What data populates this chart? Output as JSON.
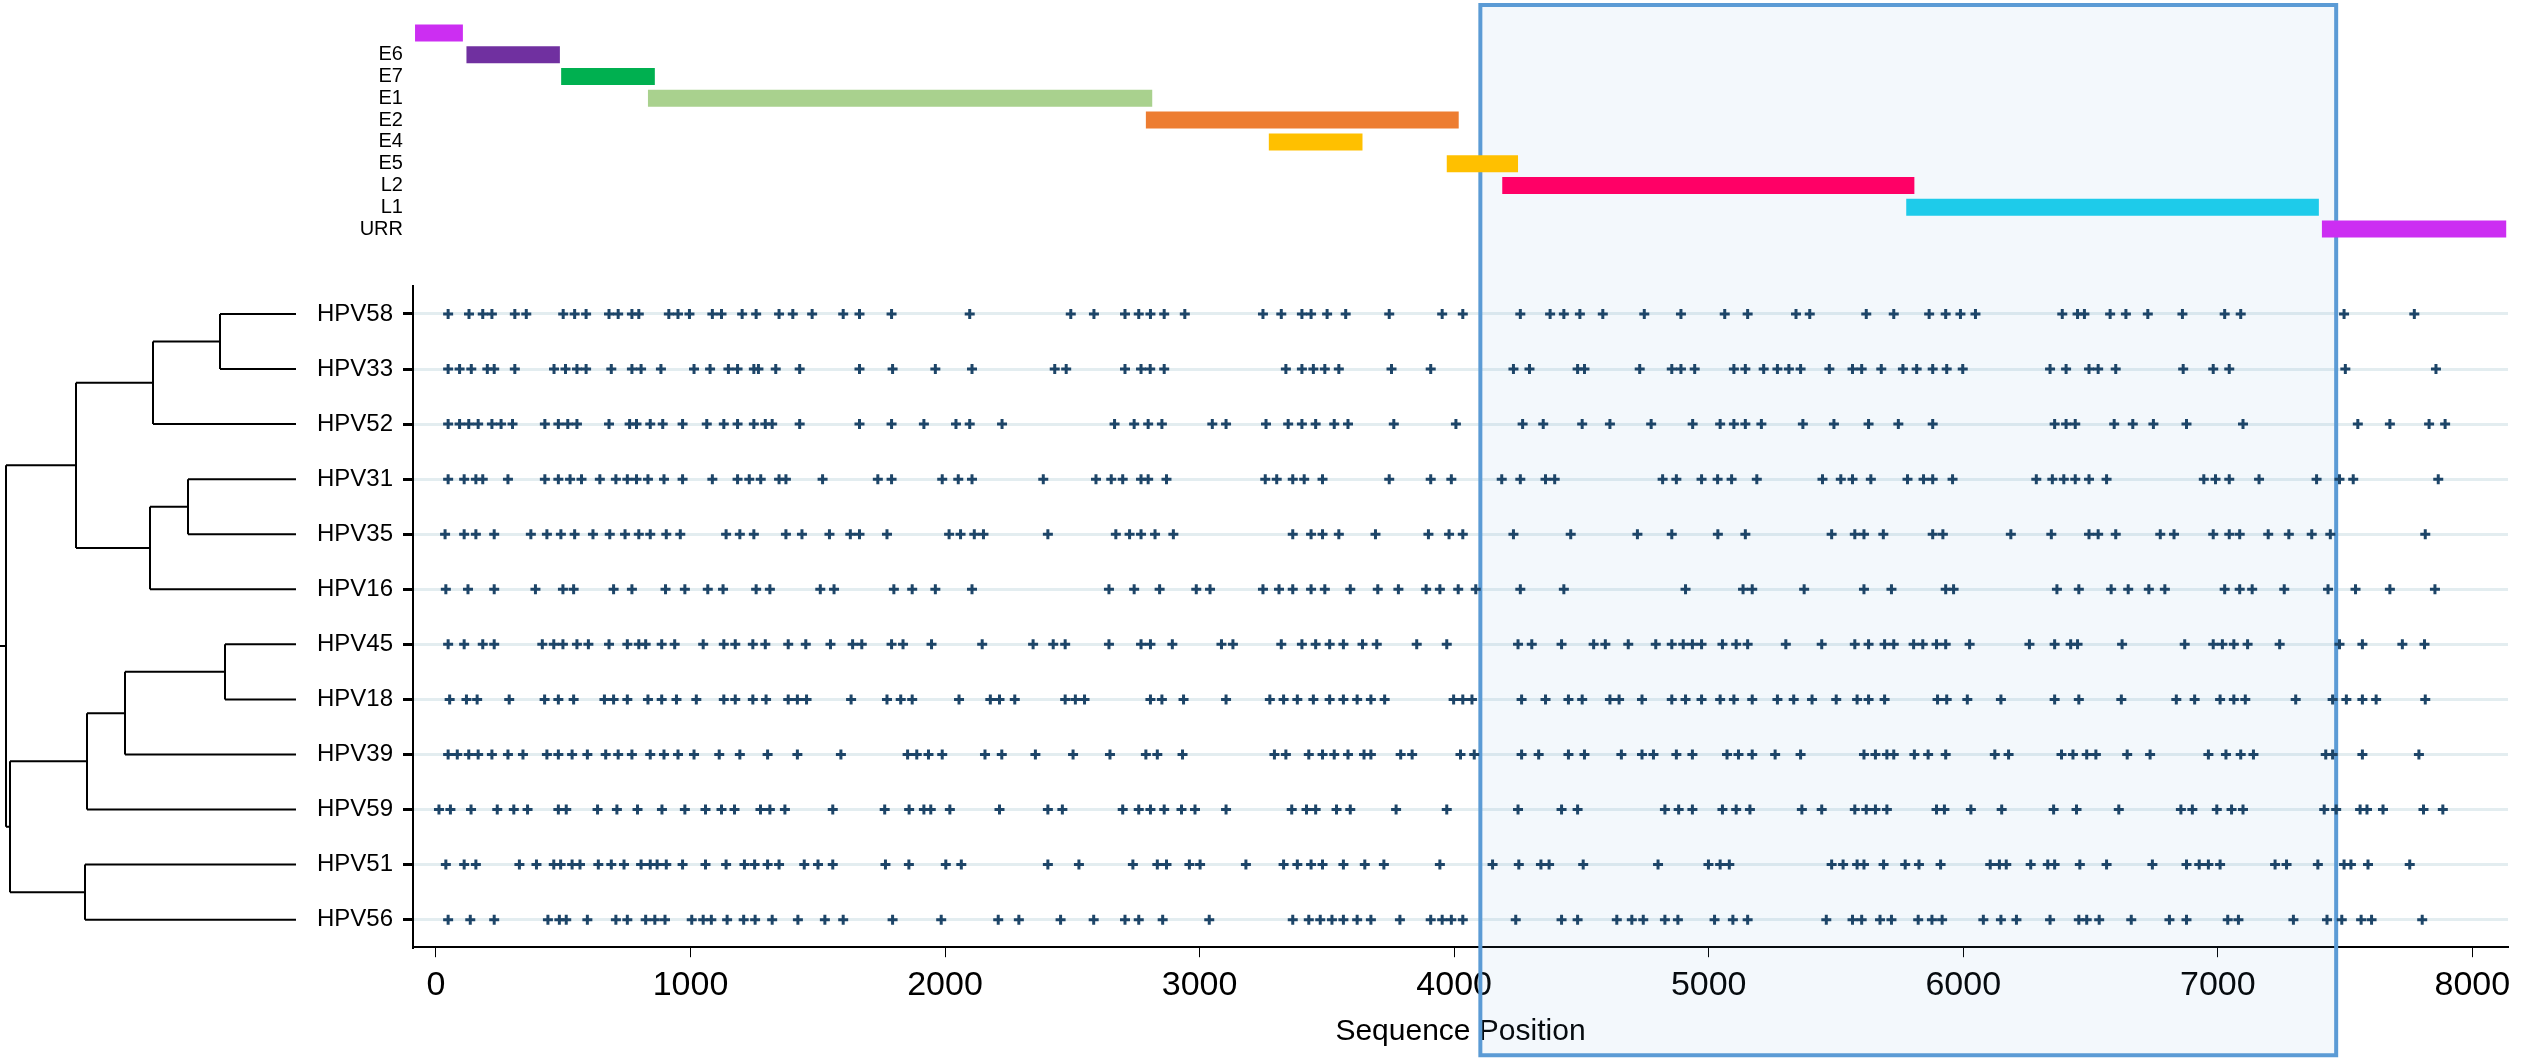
{
  "chart_data": [
    {
      "type": "bar",
      "orientation": "horizontal",
      "categories": [
        null,
        "E6",
        "E7",
        "E1",
        "E2",
        "E4",
        "E5",
        "L2",
        "L1",
        "URR"
      ],
      "values": [
        188,
        367,
        368,
        1981,
        1229,
        368,
        280,
        1619,
        1621,
        724
      ],
      "base": [
        -82,
        120,
        492,
        833,
        2789,
        3272,
        3971,
        4189,
        5776,
        7409
      ],
      "colors": [
        "#cc2ef2",
        "#7030a0",
        "#00b050",
        "#a9d18e",
        "#ed7d31",
        "#ffc000",
        "#ffc000",
        "#ff0066",
        "#1ecbea",
        "#cc2ef2"
      ],
      "xlim": [
        -90,
        8140
      ],
      "tick_labels": "y",
      "bands": [
        {
          "axis": "x",
          "from": 4103,
          "to": 7465,
          "color": "#5b9bd5"
        }
      ]
    },
    {
      "type": "scatter",
      "orientation": "horizontal",
      "categories": [
        "HPV58",
        "HPV33",
        "HPV52",
        "HPV31",
        "HPV35",
        "HPV16",
        "HPV45",
        "HPV18",
        "HPV39",
        "HPV59",
        "HPV51",
        "HPV56"
      ],
      "series": [
        {
          "color": "#1d4568",
          "x": [
            "HPV58",
            "HPV58",
            "HPV58",
            "HPV58",
            "HPV58",
            "HPV58",
            "HPV58",
            "HPV58",
            "HPV58",
            "HPV58",
            "HPV58",
            "HPV58",
            "HPV58",
            "HPV58",
            "HPV58",
            "HPV58",
            "HPV58",
            "HPV58",
            "HPV58",
            "HPV58",
            "HPV58",
            "HPV58",
            "HPV58",
            "HPV58",
            "HPV58",
            "HPV58",
            "HPV58",
            "HPV58",
            "HPV58",
            "HPV58",
            "HPV58",
            "HPV58",
            "HPV58",
            "HPV58",
            "HPV58",
            "HPV58",
            "HPV58",
            "HPV58",
            "HPV58",
            "HPV58",
            "HPV58",
            "HPV58",
            "HPV58",
            "HPV58",
            "HPV58",
            "HPV58",
            "HPV58",
            "HPV58",
            "HPV58",
            "HPV58",
            "HPV58",
            "HPV58",
            "HPV58",
            "HPV58",
            "HPV58",
            "HPV58",
            "HPV58",
            "HPV58",
            "HPV58",
            "HPV58",
            "HPV58",
            "HPV58",
            "HPV58",
            "HPV58",
            "HPV58",
            "HPV58",
            "HPV58",
            "HPV58",
            "HPV58",
            "HPV58",
            "HPV58"
          ],
          "values": [
            48,
            130,
            184,
            220,
            310,
            355,
            500,
            545,
            590,
            680,
            716,
            770,
            797,
            915,
            951,
            996,
            1086,
            1122,
            1203,
            1258,
            1348,
            1402,
            1478,
            1600,
            1664,
            1790,
            2097,
            2494,
            2585,
            2707,
            2761,
            2807,
            2861,
            2942,
            3249,
            3321,
            3402,
            3438,
            3501,
            3574,
            3745,
            3953,
            4034,
            4260,
            4377,
            4431,
            4494,
            4584,
            4747,
            4891,
            5063,
            5153,
            5343,
            5397,
            5619,
            5727,
            5866,
            5931,
            5989,
            6048,
            6389,
            6449,
            6476,
            6577,
            6639,
            6725,
            6861,
            7027,
            7090,
            7496,
            7772
          ]
        },
        {
          "color": "#1d4568",
          "x": [
            "HPV33",
            "HPV33",
            "HPV33",
            "HPV33",
            "HPV33",
            "HPV33",
            "HPV33",
            "HPV33",
            "HPV33",
            "HPV33",
            "HPV33",
            "HPV33",
            "HPV33",
            "HPV33",
            "HPV33",
            "HPV33",
            "HPV33",
            "HPV33",
            "HPV33",
            "HPV33",
            "HPV33",
            "HPV33",
            "HPV33",
            "HPV33",
            "HPV33",
            "HPV33",
            "HPV33",
            "HPV33",
            "HPV33",
            "HPV33",
            "HPV33",
            "HPV33",
            "HPV33",
            "HPV33",
            "HPV33",
            "HPV33",
            "HPV33",
            "HPV33",
            "HPV33",
            "HPV33",
            "HPV33",
            "HPV33",
            "HPV33",
            "HPV33",
            "HPV33",
            "HPV33",
            "HPV33",
            "HPV33",
            "HPV33",
            "HPV33",
            "HPV33",
            "HPV33",
            "HPV33",
            "HPV33",
            "HPV33",
            "HPV33",
            "HPV33",
            "HPV33",
            "HPV33",
            "HPV33",
            "HPV33",
            "HPV33",
            "HPV33",
            "HPV33",
            "HPV33",
            "HPV33",
            "HPV33",
            "HPV33",
            "HPV33",
            "HPV33",
            "HPV33",
            "HPV33"
          ],
          "values": [
            48,
            93,
            139,
            202,
            229,
            310,
            464,
            509,
            554,
            590,
            689,
            770,
            806,
            884,
            1014,
            1077,
            1149,
            1185,
            1249,
            1267,
            1335,
            1429,
            1664,
            1794,
            1962,
            2106,
            2431,
            2476,
            2707,
            2770,
            2806,
            2861,
            3339,
            3402,
            3447,
            3492,
            3547,
            3754,
            3908,
            4233,
            4296,
            4485,
            4512,
            4729,
            4855,
            4891,
            4945,
            5099,
            5144,
            5216,
            5270,
            5315,
            5361,
            5474,
            5565,
            5601,
            5678,
            5763,
            5817,
            5880,
            5935,
            5998,
            6341,
            6404,
            6494,
            6530,
            6599,
            6864,
            6982,
            7045,
            7501,
            7857
          ]
        },
        {
          "color": "#1d4568",
          "x": [
            "HPV52",
            "HPV52",
            "HPV52",
            "HPV52",
            "HPV52",
            "HPV52",
            "HPV52",
            "HPV52",
            "HPV52",
            "HPV52",
            "HPV52",
            "HPV52",
            "HPV52",
            "HPV52",
            "HPV52",
            "HPV52",
            "HPV52",
            "HPV52",
            "HPV52",
            "HPV52",
            "HPV52",
            "HPV52",
            "HPV52",
            "HPV52",
            "HPV52",
            "HPV52",
            "HPV52",
            "HPV52",
            "HPV52",
            "HPV52",
            "HPV52",
            "HPV52",
            "HPV52",
            "HPV52",
            "HPV52",
            "HPV52",
            "HPV52",
            "HPV52",
            "HPV52",
            "HPV52",
            "HPV52",
            "HPV52",
            "HPV52",
            "HPV52",
            "HPV52",
            "HPV52",
            "HPV52",
            "HPV52",
            "HPV52",
            "HPV52",
            "HPV52",
            "HPV52",
            "HPV52",
            "HPV52",
            "HPV52",
            "HPV52",
            "HPV52",
            "HPV52",
            "HPV52",
            "HPV52",
            "HPV52",
            "HPV52",
            "HPV52",
            "HPV52",
            "HPV52",
            "HPV52",
            "HPV52",
            "HPV52",
            "HPV52",
            "HPV52",
            "HPV52"
          ],
          "values": [
            48,
            93,
            129,
            166,
            220,
            256,
            301,
            428,
            481,
            518,
            554,
            680,
            761,
            788,
            842,
            891,
            969,
            1064,
            1131,
            1185,
            1249,
            1294,
            1321,
            1429,
            1664,
            1790,
            1917,
            2043,
            2097,
            2224,
            2666,
            2743,
            2798,
            2852,
            3050,
            3104,
            3261,
            3348,
            3402,
            3456,
            3529,
            3583,
            3763,
            4007,
            4269,
            4350,
            4503,
            4612,
            4774,
            4937,
            5045,
            5099,
            5144,
            5207,
            5370,
            5492,
            5628,
            5745,
            5880,
            6359,
            6404,
            6440,
            6593,
            6666,
            6747,
            6877,
            7099,
            7550,
            7676,
            7830,
            7893
          ]
        },
        {
          "color": "#1d4568",
          "x": [
            "HPV31",
            "HPV31",
            "HPV31",
            "HPV31",
            "HPV31",
            "HPV31",
            "HPV31",
            "HPV31",
            "HPV31",
            "HPV31",
            "HPV31",
            "HPV31",
            "HPV31",
            "HPV31",
            "HPV31",
            "HPV31",
            "HPV31",
            "HPV31",
            "HPV31",
            "HPV31",
            "HPV31",
            "HPV31",
            "HPV31",
            "HPV31",
            "HPV31",
            "HPV31",
            "HPV31",
            "HPV31",
            "HPV31",
            "HPV31",
            "HPV31",
            "HPV31",
            "HPV31",
            "HPV31",
            "HPV31",
            "HPV31",
            "HPV31",
            "HPV31",
            "HPV31",
            "HPV31",
            "HPV31",
            "HPV31",
            "HPV31",
            "HPV31",
            "HPV31",
            "HPV31",
            "HPV31",
            "HPV31",
            "HPV31",
            "HPV31",
            "HPV31",
            "HPV31",
            "HPV31",
            "HPV31",
            "HPV31",
            "HPV31",
            "HPV31",
            "HPV31",
            "HPV31",
            "HPV31",
            "HPV31",
            "HPV31",
            "HPV31",
            "HPV31",
            "HPV31",
            "HPV31",
            "HPV31",
            "HPV31",
            "HPV31",
            "HPV31",
            "HPV31",
            "HPV31",
            "HPV31",
            "HPV31",
            "HPV31"
          ],
          "values": [
            48,
            111,
            157,
            184,
            283,
            428,
            481,
            527,
            572,
            644,
            707,
            752,
            788,
            833,
            896,
            969,
            1086,
            1185,
            1231,
            1276,
            1348,
            1375,
            1519,
            1736,
            1790,
            1989,
            2052,
            2106,
            2386,
            2593,
            2653,
            2698,
            2770,
            2798,
            2870,
            3258,
            3303,
            3366,
            3411,
            3483,
            3745,
            3908,
            3989,
            4187,
            4260,
            4359,
            4395,
            4819,
            4873,
            4972,
            5035,
            5090,
            5189,
            5447,
            5519,
            5565,
            5637,
            5781,
            5844,
            5880,
            5958,
            6287,
            6350,
            6395,
            6440,
            6494,
            6563,
            6945,
            6991,
            7045,
            7162,
            7388,
            7478,
            7532,
            7866
          ]
        },
        {
          "color": "#1d4568",
          "x": [
            "HPV35",
            "HPV35",
            "HPV35",
            "HPV35",
            "HPV35",
            "HPV35",
            "HPV35",
            "HPV35",
            "HPV35",
            "HPV35",
            "HPV35",
            "HPV35",
            "HPV35",
            "HPV35",
            "HPV35",
            "HPV35",
            "HPV35",
            "HPV35",
            "HPV35",
            "HPV35",
            "HPV35",
            "HPV35",
            "HPV35",
            "HPV35",
            "HPV35",
            "HPV35",
            "HPV35",
            "HPV35",
            "HPV35",
            "HPV35",
            "HPV35",
            "HPV35",
            "HPV35",
            "HPV35",
            "HPV35",
            "HPV35",
            "HPV35",
            "HPV35",
            "HPV35",
            "HPV35",
            "HPV35",
            "HPV35",
            "HPV35",
            "HPV35",
            "HPV35",
            "HPV35",
            "HPV35",
            "HPV35",
            "HPV35",
            "HPV35",
            "HPV35",
            "HPV35",
            "HPV35",
            "HPV35",
            "HPV35",
            "HPV35",
            "HPV35",
            "HPV35",
            "HPV35",
            "HPV35",
            "HPV35",
            "HPV35",
            "HPV35",
            "HPV35",
            "HPV35",
            "HPV35",
            "HPV35",
            "HPV35",
            "HPV35"
          ],
          "values": [
            36,
            111,
            157,
            229,
            373,
            436,
            491,
            545,
            617,
            683,
            743,
            797,
            842,
            905,
            960,
            1140,
            1194,
            1249,
            1375,
            1438,
            1546,
            1628,
            1664,
            1772,
            2016,
            2061,
            2115,
            2151,
            2404,
            2671,
            2725,
            2770,
            2825,
            2897,
            3366,
            3438,
            3483,
            3547,
            3691,
            3899,
            3980,
            4034,
            4233,
            4458,
            4720,
            4855,
            5036,
            5144,
            5483,
            5574,
            5610,
            5686,
            5880,
            5920,
            6187,
            6346,
            6494,
            6530,
            6599,
            6774,
            6828,
            6982,
            7045,
            7086,
            7198,
            7279,
            7369,
            7442,
            7815
          ]
        },
        {
          "color": "#1d4568",
          "x": [
            "HPV16",
            "HPV16",
            "HPV16",
            "HPV16",
            "HPV16",
            "HPV16",
            "HPV16",
            "HPV16",
            "HPV16",
            "HPV16",
            "HPV16",
            "HPV16",
            "HPV16",
            "HPV16",
            "HPV16",
            "HPV16",
            "HPV16",
            "HPV16",
            "HPV16",
            "HPV16",
            "HPV16",
            "HPV16",
            "HPV16",
            "HPV16",
            "HPV16",
            "HPV16",
            "HPV16",
            "HPV16",
            "HPV16",
            "HPV16",
            "HPV16",
            "HPV16",
            "HPV16",
            "HPV16",
            "HPV16",
            "HPV16",
            "HPV16",
            "HPV16",
            "HPV16",
            "HPV16",
            "HPV16",
            "HPV16",
            "HPV16",
            "HPV16",
            "HPV16",
            "HPV16",
            "HPV16",
            "HPV16",
            "HPV16",
            "HPV16",
            "HPV16",
            "HPV16",
            "HPV16",
            "HPV16",
            "HPV16",
            "HPV16",
            "HPV16",
            "HPV16",
            "HPV16",
            "HPV16",
            "HPV16"
          ],
          "values": [
            39,
            126,
            229,
            391,
            499,
            541,
            698,
            770,
            902,
            978,
            1068,
            1128,
            1258,
            1312,
            1510,
            1564,
            1799,
            1871,
            1962,
            2106,
            2644,
            2743,
            2843,
            2987,
            3041,
            3249,
            3312,
            3366,
            3438,
            3492,
            3592,
            3700,
            3781,
            3890,
            3944,
            4016,
            4085,
            4260,
            4431,
            4909,
            5135,
            5171,
            5375,
            5610,
            5718,
            5931,
            5962,
            6368,
            6454,
            6581,
            6648,
            6729,
            6792,
            7027,
            7086,
            7135,
            7261,
            7433,
            7541,
            7676,
            7853
          ]
        },
        {
          "color": "#1d4568",
          "x": [
            "HPV45",
            "HPV45",
            "HPV45",
            "HPV45",
            "HPV45",
            "HPV45",
            "HPV45",
            "HPV45",
            "HPV45",
            "HPV45",
            "HPV45",
            "HPV45",
            "HPV45",
            "HPV45",
            "HPV45",
            "HPV45",
            "HPV45",
            "HPV45",
            "HPV45",
            "HPV45",
            "HPV45",
            "HPV45",
            "HPV45",
            "HPV45",
            "HPV45",
            "HPV45",
            "HPV45",
            "HPV45",
            "HPV45",
            "HPV45",
            "HPV45",
            "HPV45",
            "HPV45",
            "HPV45",
            "HPV45",
            "HPV45",
            "HPV45",
            "HPV45",
            "HPV45",
            "HPV45",
            "HPV45",
            "HPV45",
            "HPV45",
            "HPV45",
            "HPV45",
            "HPV45",
            "HPV45",
            "HPV45",
            "HPV45",
            "HPV45",
            "HPV45",
            "HPV45",
            "HPV45",
            "HPV45",
            "HPV45",
            "HPV45",
            "HPV45",
            "HPV45",
            "HPV45",
            "HPV45",
            "HPV45",
            "HPV45",
            "HPV45",
            "HPV45",
            "HPV45",
            "HPV45",
            "HPV45",
            "HPV45",
            "HPV45",
            "HPV45",
            "HPV45",
            "HPV45",
            "HPV45",
            "HPV45",
            "HPV45",
            "HPV45",
            "HPV45",
            "HPV45",
            "HPV45",
            "HPV45",
            "HPV45",
            "HPV45",
            "HPV45",
            "HPV45",
            "HPV45",
            "HPV45",
            "HPV45"
          ],
          "values": [
            48,
            111,
            184,
            229,
            418,
            463,
            499,
            554,
            599,
            680,
            752,
            797,
            824,
            887,
            938,
            1050,
            1131,
            1176,
            1245,
            1294,
            1384,
            1453,
            1550,
            1637,
            1673,
            1790,
            1835,
            1947,
            2146,
            2346,
            2425,
            2472,
            2644,
            2770,
            2807,
            2893,
            3086,
            3131,
            3321,
            3402,
            3456,
            3511,
            3565,
            3640,
            3696,
            3853,
            3971,
            4251,
            4305,
            4422,
            4548,
            4594,
            4684,
            4792,
            4855,
            4900,
            4936,
            4972,
            5054,
            5108,
            5153,
            5303,
            5444,
            5574,
            5628,
            5691,
            5727,
            5805,
            5841,
            5895,
            5931,
            6025,
            6260,
            6359,
            6422,
            6449,
            6624,
            6870,
            6982,
            7018,
            7063,
            7117,
            7243,
            7478,
            7568,
            7725,
            7812
          ]
        },
        {
          "color": "#1d4568",
          "x": [
            "HPV18",
            "HPV18",
            "HPV18",
            "HPV18",
            "HPV18",
            "HPV18",
            "HPV18",
            "HPV18",
            "HPV18",
            "HPV18",
            "HPV18",
            "HPV18",
            "HPV18",
            "HPV18",
            "HPV18",
            "HPV18",
            "HPV18",
            "HPV18",
            "HPV18",
            "HPV18",
            "HPV18",
            "HPV18",
            "HPV18",
            "HPV18",
            "HPV18",
            "HPV18",
            "HPV18",
            "HPV18",
            "HPV18",
            "HPV18",
            "HPV18",
            "HPV18",
            "HPV18",
            "HPV18",
            "HPV18",
            "HPV18",
            "HPV18",
            "HPV18",
            "HPV18",
            "HPV18",
            "HPV18",
            "HPV18",
            "HPV18",
            "HPV18",
            "HPV18",
            "HPV18",
            "HPV18",
            "HPV18",
            "HPV18",
            "HPV18",
            "HPV18",
            "HPV18",
            "HPV18",
            "HPV18",
            "HPV18",
            "HPV18",
            "HPV18",
            "HPV18",
            "HPV18",
            "HPV18",
            "HPV18",
            "HPV18",
            "HPV18",
            "HPV18",
            "HPV18",
            "HPV18",
            "HPV18",
            "HPV18",
            "HPV18",
            "HPV18",
            "HPV18",
            "HPV18",
            "HPV18",
            "HPV18",
            "HPV18",
            "HPV18",
            "HPV18",
            "HPV18",
            "HPV18",
            "HPV18",
            "HPV18",
            "HPV18",
            "HPV18",
            "HPV18",
            "HPV18",
            "HPV18"
          ],
          "values": [
            54,
            120,
            162,
            288,
            427,
            481,
            541,
            662,
            698,
            752,
            833,
            887,
            945,
            1023,
            1131,
            1176,
            1245,
            1297,
            1384,
            1420,
            1456,
            1631,
            1772,
            1826,
            1871,
            2055,
            2178,
            2214,
            2274,
            2472,
            2512,
            2548,
            2807,
            2852,
            2937,
            3104,
            3276,
            3330,
            3384,
            3447,
            3511,
            3565,
            3619,
            3673,
            3727,
            3998,
            4034,
            4070,
            4265,
            4359,
            4449,
            4503,
            4612,
            4648,
            4738,
            4855,
            4909,
            4972,
            5045,
            5099,
            5171,
            5270,
            5334,
            5406,
            5501,
            5583,
            5628,
            5691,
            5899,
            5935,
            6016,
            6148,
            6359,
            6454,
            6621,
            6837,
            6909,
            7009,
            7063,
            7108,
            7306,
            7451,
            7505,
            7568,
            7622,
            7815
          ]
        },
        {
          "color": "#1d4568",
          "x": [
            "HPV39",
            "HPV39",
            "HPV39",
            "HPV39",
            "HPV39",
            "HPV39",
            "HPV39",
            "HPV39",
            "HPV39",
            "HPV39",
            "HPV39",
            "HPV39",
            "HPV39",
            "HPV39",
            "HPV39",
            "HPV39",
            "HPV39",
            "HPV39",
            "HPV39",
            "HPV39",
            "HPV39",
            "HPV39",
            "HPV39",
            "HPV39",
            "HPV39",
            "HPV39",
            "HPV39",
            "HPV39",
            "HPV39",
            "HPV39",
            "HPV39",
            "HPV39",
            "HPV39",
            "HPV39",
            "HPV39",
            "HPV39",
            "HPV39",
            "HPV39",
            "HPV39",
            "HPV39",
            "HPV39",
            "HPV39",
            "HPV39",
            "HPV39",
            "HPV39",
            "HPV39",
            "HPV39",
            "HPV39",
            "HPV39",
            "HPV39",
            "HPV39",
            "HPV39",
            "HPV39",
            "HPV39",
            "HPV39",
            "HPV39",
            "HPV39",
            "HPV39",
            "HPV39",
            "HPV39",
            "HPV39",
            "HPV39",
            "HPV39",
            "HPV39",
            "HPV39",
            "HPV39",
            "HPV39",
            "HPV39",
            "HPV39",
            "HPV39",
            "HPV39",
            "HPV39",
            "HPV39",
            "HPV39",
            "HPV39",
            "HPV39",
            "HPV39",
            "HPV39",
            "HPV39",
            "HPV39",
            "HPV39",
            "HPV39",
            "HPV39",
            "HPV39"
          ],
          "values": [
            48,
            84,
            129,
            166,
            220,
            283,
            342,
            436,
            481,
            535,
            595,
            667,
            716,
            770,
            842,
            896,
            951,
            1014,
            1113,
            1194,
            1303,
            1420,
            1591,
            1853,
            1889,
            1935,
            1989,
            2157,
            2223,
            2355,
            2503,
            2648,
            2789,
            2834,
            2933,
            3294,
            3339,
            3429,
            3483,
            3529,
            3583,
            3646,
            3673,
            3790,
            3835,
            4025,
            4079,
            4265,
            4332,
            4449,
            4512,
            4657,
            4738,
            4783,
            4873,
            4936,
            5072,
            5117,
            5171,
            5261,
            5361,
            5610,
            5655,
            5700,
            5727,
            5808,
            5862,
            5931,
            6124,
            6178,
            6386,
            6431,
            6485,
            6521,
            6644,
            6734,
            6963,
            7032,
            7090,
            7140,
            7424,
            7451,
            7568,
            7790
          ]
        },
        {
          "color": "#1d4568",
          "x": [
            "HPV59",
            "HPV59",
            "HPV59",
            "HPV59",
            "HPV59",
            "HPV59",
            "HPV59",
            "HPV59",
            "HPV59",
            "HPV59",
            "HPV59",
            "HPV59",
            "HPV59",
            "HPV59",
            "HPV59",
            "HPV59",
            "HPV59",
            "HPV59",
            "HPV59",
            "HPV59",
            "HPV59",
            "HPV59",
            "HPV59",
            "HPV59",
            "HPV59",
            "HPV59",
            "HPV59",
            "HPV59",
            "HPV59",
            "HPV59",
            "HPV59",
            "HPV59",
            "HPV59",
            "HPV59",
            "HPV59",
            "HPV59",
            "HPV59",
            "HPV59",
            "HPV59",
            "HPV59",
            "HPV59",
            "HPV59",
            "HPV59",
            "HPV59",
            "HPV59",
            "HPV59",
            "HPV59",
            "HPV59",
            "HPV59",
            "HPV59",
            "HPV59",
            "HPV59",
            "HPV59",
            "HPV59",
            "HPV59",
            "HPV59",
            "HPV59",
            "HPV59",
            "HPV59",
            "HPV59",
            "HPV59",
            "HPV59",
            "HPV59",
            "HPV59",
            "HPV59",
            "HPV59",
            "HPV59",
            "HPV59",
            "HPV59",
            "HPV59",
            "HPV59",
            "HPV59",
            "HPV59",
            "HPV59",
            "HPV59",
            "HPV59"
          ],
          "values": [
            12,
            57,
            138,
            241,
            306,
            360,
            481,
            512,
            635,
            711,
            792,
            888,
            978,
            1059,
            1122,
            1173,
            1275,
            1312,
            1371,
            1559,
            1763,
            1859,
            1917,
            1944,
            2019,
            2214,
            2404,
            2461,
            2698,
            2761,
            2807,
            2861,
            2929,
            2982,
            3104,
            3362,
            3420,
            3456,
            3538,
            3592,
            3772,
            3971,
            4251,
            4422,
            4485,
            4828,
            4882,
            4936,
            5054,
            5108,
            5162,
            5366,
            5444,
            5574,
            5619,
            5655,
            5700,
            5895,
            5926,
            6030,
            6151,
            6355,
            6445,
            6611,
            6855,
            6900,
            6996,
            7054,
            7099,
            7418,
            7465,
            7559,
            7586,
            7649,
            7808,
            7884
          ]
        },
        {
          "color": "#1d4568",
          "x": [
            "HPV51",
            "HPV51",
            "HPV51",
            "HPV51",
            "HPV51",
            "HPV51",
            "HPV51",
            "HPV51",
            "HPV51",
            "HPV51",
            "HPV51",
            "HPV51",
            "HPV51",
            "HPV51",
            "HPV51",
            "HPV51",
            "HPV51",
            "HPV51",
            "HPV51",
            "HPV51",
            "HPV51",
            "HPV51",
            "HPV51",
            "HPV51",
            "HPV51",
            "HPV51",
            "HPV51",
            "HPV51",
            "HPV51",
            "HPV51",
            "HPV51",
            "HPV51",
            "HPV51",
            "HPV51",
            "HPV51",
            "HPV51",
            "HPV51",
            "HPV51",
            "HPV51",
            "HPV51",
            "HPV51",
            "HPV51",
            "HPV51",
            "HPV51",
            "HPV51",
            "HPV51",
            "HPV51",
            "HPV51",
            "HPV51",
            "HPV51",
            "HPV51",
            "HPV51",
            "HPV51",
            "HPV51",
            "HPV51",
            "HPV51",
            "HPV51",
            "HPV51",
            "HPV51",
            "HPV51",
            "HPV51",
            "HPV51",
            "HPV51",
            "HPV51",
            "HPV51",
            "HPV51",
            "HPV51",
            "HPV51",
            "HPV51",
            "HPV51",
            "HPV51",
            "HPV51",
            "HPV51",
            "HPV51",
            "HPV51",
            "HPV51",
            "HPV51",
            "HPV51",
            "HPV51",
            "HPV51",
            "HPV51",
            "HPV51",
            "HPV51"
          ],
          "values": [
            39,
            111,
            157,
            328,
            395,
            463,
            490,
            535,
            566,
            638,
            689,
            739,
            806,
            842,
            869,
            905,
            969,
            1059,
            1140,
            1212,
            1252,
            1303,
            1348,
            1447,
            1501,
            1559,
            1766,
            1858,
            2003,
            2064,
            2404,
            2526,
            2738,
            2834,
            2870,
            2960,
            3002,
            3182,
            3330,
            3384,
            3438,
            3483,
            3565,
            3649,
            3724,
            3944,
            4151,
            4254,
            4341,
            4373,
            4507,
            4801,
            4999,
            5045,
            5081,
            5483,
            5528,
            5583,
            5610,
            5687,
            5772,
            5826,
            5911,
            6106,
            6142,
            6169,
            6265,
            6332,
            6359,
            6458,
            6563,
            6743,
            6877,
            6927,
            6963,
            7009,
            7225,
            7270,
            7393,
            7496,
            7523,
            7590,
            7754
          ]
        },
        {
          "color": "#1d4568",
          "x": [
            "HPV56",
            "HPV56",
            "HPV56",
            "HPV56",
            "HPV56",
            "HPV56",
            "HPV56",
            "HPV56",
            "HPV56",
            "HPV56",
            "HPV56",
            "HPV56",
            "HPV56",
            "HPV56",
            "HPV56",
            "HPV56",
            "HPV56",
            "HPV56",
            "HPV56",
            "HPV56",
            "HPV56",
            "HPV56",
            "HPV56",
            "HPV56",
            "HPV56",
            "HPV56",
            "HPV56",
            "HPV56",
            "HPV56",
            "HPV56",
            "HPV56",
            "HPV56",
            "HPV56",
            "HPV56",
            "HPV56",
            "HPV56",
            "HPV56",
            "HPV56",
            "HPV56",
            "HPV56",
            "HPV56",
            "HPV56",
            "HPV56",
            "HPV56",
            "HPV56",
            "HPV56",
            "HPV56",
            "HPV56",
            "HPV56",
            "HPV56",
            "HPV56",
            "HPV56",
            "HPV56",
            "HPV56",
            "HPV56",
            "HPV56",
            "HPV56",
            "HPV56",
            "HPV56",
            "HPV56",
            "HPV56",
            "HPV56",
            "HPV56",
            "HPV56",
            "HPV56",
            "HPV56",
            "HPV56",
            "HPV56",
            "HPV56",
            "HPV56",
            "HPV56",
            "HPV56",
            "HPV56",
            "HPV56",
            "HPV56",
            "HPV56",
            "HPV56",
            "HPV56",
            "HPV56",
            "HPV56",
            "HPV56"
          ],
          "values": [
            48,
            135,
            229,
            440,
            485,
            512,
            595,
            707,
            752,
            824,
            860,
            900,
            1005,
            1050,
            1082,
            1144,
            1209,
            1254,
            1321,
            1422,
            1528,
            1600,
            1794,
            1985,
            2209,
            2290,
            2454,
            2584,
            2707,
            2761,
            2855,
            3038,
            3366,
            3429,
            3474,
            3520,
            3565,
            3619,
            3673,
            3787,
            3908,
            3953,
            3989,
            4034,
            4242,
            4422,
            4485,
            4639,
            4698,
            4743,
            4828,
            4879,
            5023,
            5095,
            5153,
            5462,
            5565,
            5601,
            5673,
            5718,
            5823,
            5877,
            5917,
            6079,
            6148,
            6209,
            6341,
            6454,
            6485,
            6534,
            6660,
            6810,
            6877,
            7039,
            7081,
            7297,
            7429,
            7487,
            7563,
            7604,
            7803
          ]
        }
      ],
      "xlim": [
        -90,
        8140
      ],
      "xticks": [
        0,
        1000,
        2000,
        3000,
        4000,
        5000,
        6000,
        7000,
        8000
      ],
      "xlabel": "Sequence Position",
      "marker": "cross",
      "grid": "y",
      "bands": [
        {
          "axis": "x",
          "from": 4103,
          "to": 7465,
          "color": "#5b9bd5"
        }
      ]
    }
  ]
}
